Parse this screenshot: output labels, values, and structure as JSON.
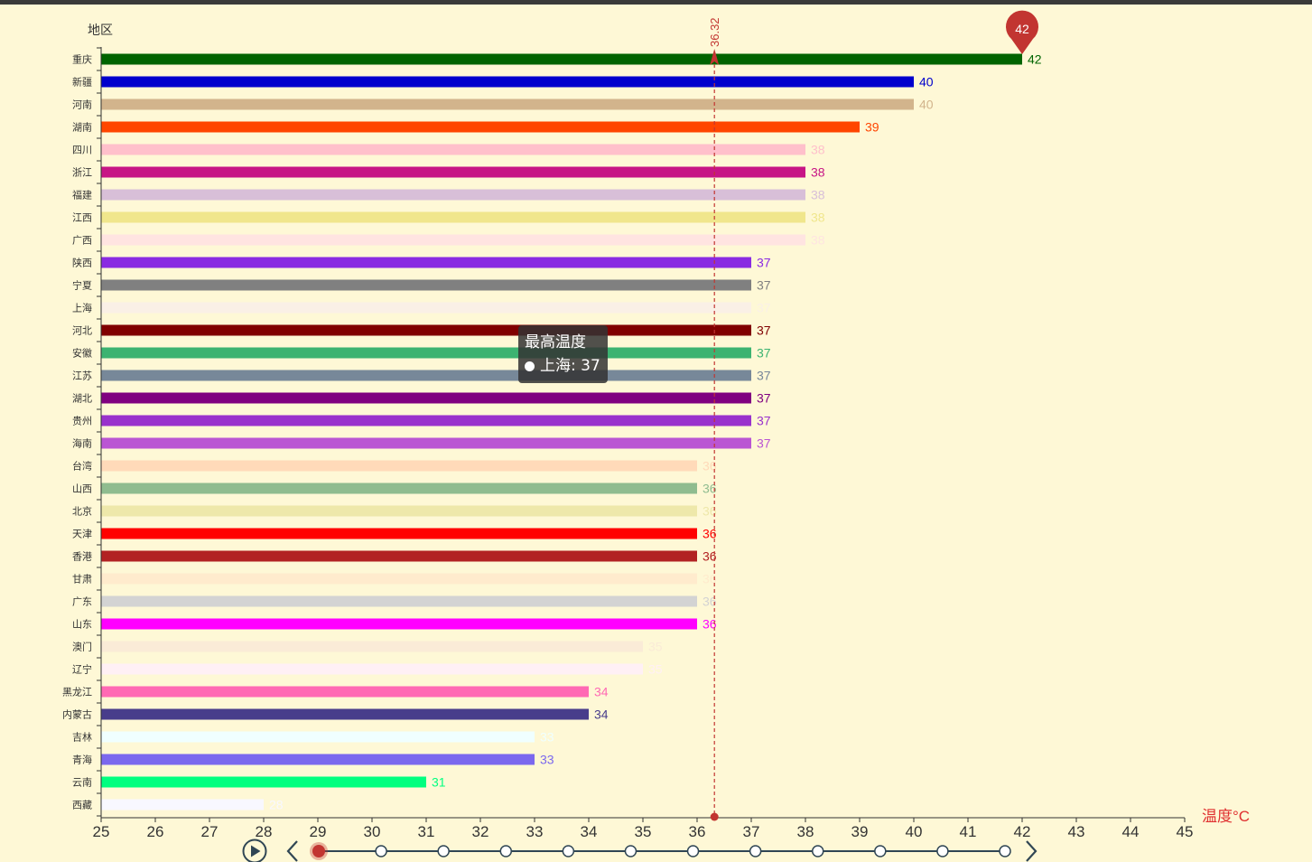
{
  "chart_data": {
    "type": "bar",
    "orientation": "horizontal",
    "ylabel": "地区",
    "xlabel": "温度°C",
    "xlim": [
      25,
      45
    ],
    "xticks": [
      25,
      26,
      27,
      28,
      29,
      30,
      31,
      32,
      33,
      34,
      35,
      36,
      37,
      38,
      39,
      40,
      41,
      42,
      43,
      44,
      45
    ],
    "categories": [
      "重庆",
      "新疆",
      "河南",
      "湖南",
      "四川",
      "浙江",
      "福建",
      "江西",
      "广西",
      "陕西",
      "宁夏",
      "上海",
      "河北",
      "安徽",
      "江苏",
      "湖北",
      "贵州",
      "海南",
      "台湾",
      "山西",
      "北京",
      "天津",
      "香港",
      "甘肃",
      "广东",
      "山东",
      "澳门",
      "辽宁",
      "黑龙江",
      "内蒙古",
      "吉林",
      "青海",
      "云南",
      "西藏"
    ],
    "values": [
      42,
      40,
      40,
      39,
      38,
      38,
      38,
      38,
      38,
      37,
      37,
      37,
      37,
      37,
      37,
      37,
      37,
      37,
      36,
      36,
      36,
      36,
      36,
      36,
      36,
      36,
      35,
      35,
      34,
      34,
      33,
      33,
      31,
      28
    ],
    "colors": [
      "#006400",
      "#0000cd",
      "#d2b48c",
      "#ff4500",
      "#ffc0cb",
      "#c71585",
      "#d8bfd8",
      "#f0e68c",
      "#ffe4e1",
      "#8a2be2",
      "#808080",
      "#faf0e6",
      "#800000",
      "#3cb371",
      "#778899",
      "#800080",
      "#9932cc",
      "#ba55d3",
      "#ffdab9",
      "#8fbc8f",
      "#eee8aa",
      "#ff0000",
      "#b22222",
      "#ffebcd",
      "#d3d3d3",
      "#ff00ff",
      "#faebd7",
      "#fff0f5",
      "#ff69b4",
      "#483d8b",
      "#f0ffff",
      "#7b68ee",
      "#00ff7f",
      "#f8f8ff"
    ],
    "mark_point": {
      "label": "42",
      "value": 42,
      "color": "#c23531"
    },
    "mark_line": {
      "label": "36.32",
      "value": 36.32,
      "color": "#c23531"
    },
    "grid": false
  },
  "tooltip": {
    "title": "最高温度",
    "text": "上海: 37"
  },
  "timeline": {
    "play_icon": "play-icon",
    "prev_icon": "chevron-left-icon",
    "next_icon": "chevron-right-icon",
    "steps": 12,
    "current_index": 0,
    "accent": "#c23531",
    "line_color": "#304654"
  }
}
